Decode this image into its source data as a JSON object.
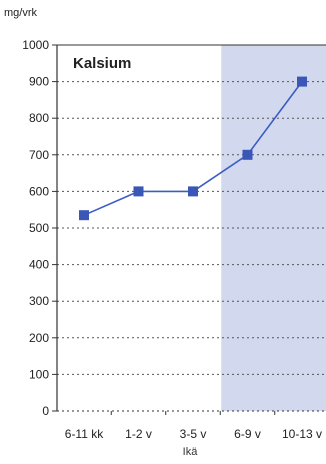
{
  "chart_data": {
    "type": "line",
    "title": "Kalsium",
    "ylabel": "mg/vrk",
    "xlabel": "Ikä",
    "categories": [
      "6-11 kk",
      "1-2 v",
      "3-5 v",
      "6-9 v",
      "10-13 v"
    ],
    "series": [
      {
        "values": [
          535,
          600,
          600,
          700,
          900
        ]
      }
    ],
    "ylim": [
      0,
      1000
    ],
    "yticks": [
      0,
      100,
      200,
      300,
      400,
      500,
      600,
      700,
      800,
      900,
      1000
    ],
    "ytick_labels": [
      "0",
      "100",
      "200",
      "300",
      "400",
      "500",
      "600",
      "700",
      "800",
      "900",
      "1000"
    ],
    "grid": "horizontal dotted",
    "highlight_region": {
      "from_category": "6-9 v",
      "to_category": "10-13 v"
    },
    "colors": {
      "line": "#3b5cc4",
      "marker": "#3a57b8",
      "highlight": "#d2d8ee",
      "grid": "#555555",
      "axis": "#333333"
    }
  }
}
